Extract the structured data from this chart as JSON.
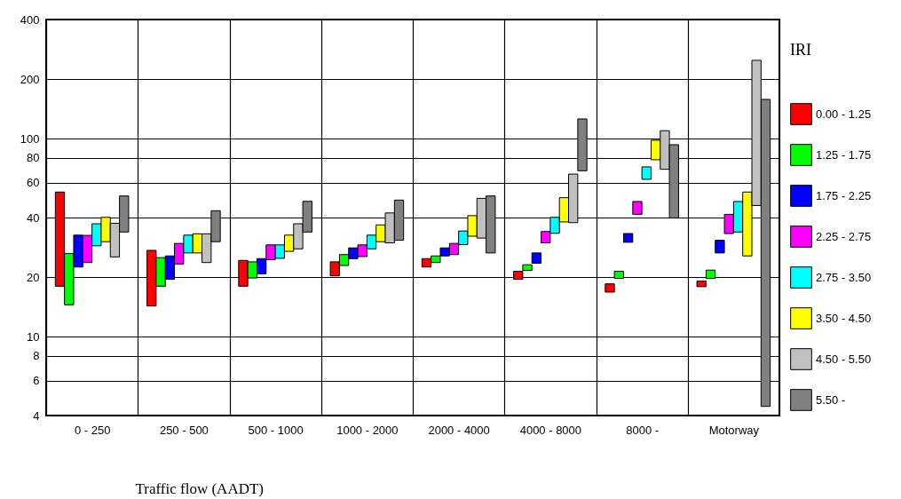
{
  "chart_data": {
    "type": "bar",
    "xlabel": "Traffic flow (AADT)",
    "legend_title": "IRI",
    "categories": [
      "0 - 250",
      "250 - 500",
      "500 - 1000",
      "1000 - 2000",
      "2000 - 4000",
      "4000 - 8000",
      "8000 -",
      "Motorway"
    ],
    "series": [
      {
        "name": "0.00 - 1.25",
        "color": "#ff0000",
        "base": [
          18.0,
          14.3,
          18.0,
          20.3,
          22.5,
          19.5,
          16.8,
          17.9
        ],
        "values": [
          35.8,
          13.0,
          6.3,
          3.6,
          2.3,
          1.9,
          1.7,
          1.2
        ]
      },
      {
        "name": "1.25 - 1.75",
        "color": "#00ff00",
        "base": [
          14.5,
          18.0,
          19.8,
          22.9,
          23.7,
          21.6,
          19.7,
          19.7
        ],
        "values": [
          11.8,
          7.1,
          4.1,
          3.1,
          1.9,
          1.5,
          1.7,
          2.0
        ]
      },
      {
        "name": "1.75 - 2.25",
        "color": "#0000ff",
        "base": [
          22.5,
          19.5,
          20.8,
          24.8,
          25.6,
          23.5,
          30.0,
          26.5
        ],
        "values": [
          10.1,
          6.1,
          4.0,
          3.3,
          2.5,
          3.0,
          3.2,
          4.2
        ]
      },
      {
        "name": "2.25 - 2.75",
        "color": "#ff00ff",
        "base": [
          23.7,
          23.3,
          24.5,
          25.4,
          26.0,
          29.8,
          41.5,
          33.2
        ],
        "values": [
          8.8,
          6.3,
          4.6,
          3.7,
          3.6,
          4.2,
          6.7,
          8.3
        ]
      },
      {
        "name": "2.75 - 3.50",
        "color": "#00ffff",
        "base": [
          28.8,
          26.5,
          24.9,
          27.8,
          29.2,
          33.3,
          62.4,
          33.8
        ],
        "values": [
          8.4,
          6.1,
          4.2,
          4.8,
          5.0,
          6.8,
          9.7,
          14.4
        ]
      },
      {
        "name": "3.50 - 4.50",
        "color": "#ffff00",
        "base": [
          30.2,
          26.5,
          27.0,
          30.2,
          32.2,
          38.0,
          78.3,
          25.6
        ],
        "values": [
          9.9,
          6.6,
          5.6,
          6.5,
          8.7,
          12.4,
          20.0,
          28.2
        ]
      },
      {
        "name": "4.50 - 5.50",
        "color": "#c0c0c0",
        "base": [
          25.3,
          23.7,
          27.8,
          29.8,
          31.5,
          37.7,
          70.1,
          46.0
        ],
        "values": [
          12.1,
          9.4,
          9.4,
          12.4,
          18.5,
          28.6,
          39.7,
          203
        ]
      },
      {
        "name": "5.50 -",
        "color": "#808080",
        "base": [
          33.8,
          30.2,
          33.8,
          30.7,
          26.5,
          68.9,
          39.8,
          4.45
        ],
        "values": [
          17.6,
          13.1,
          14.5,
          18.3,
          24.9,
          57,
          53.5,
          153.6
        ]
      }
    ],
    "ylim": [
      4,
      400
    ],
    "yticks": [
      4,
      6,
      8,
      10,
      20,
      40,
      60,
      80,
      100,
      200,
      400
    ],
    "log": true,
    "grid": true,
    "legend": "right"
  }
}
